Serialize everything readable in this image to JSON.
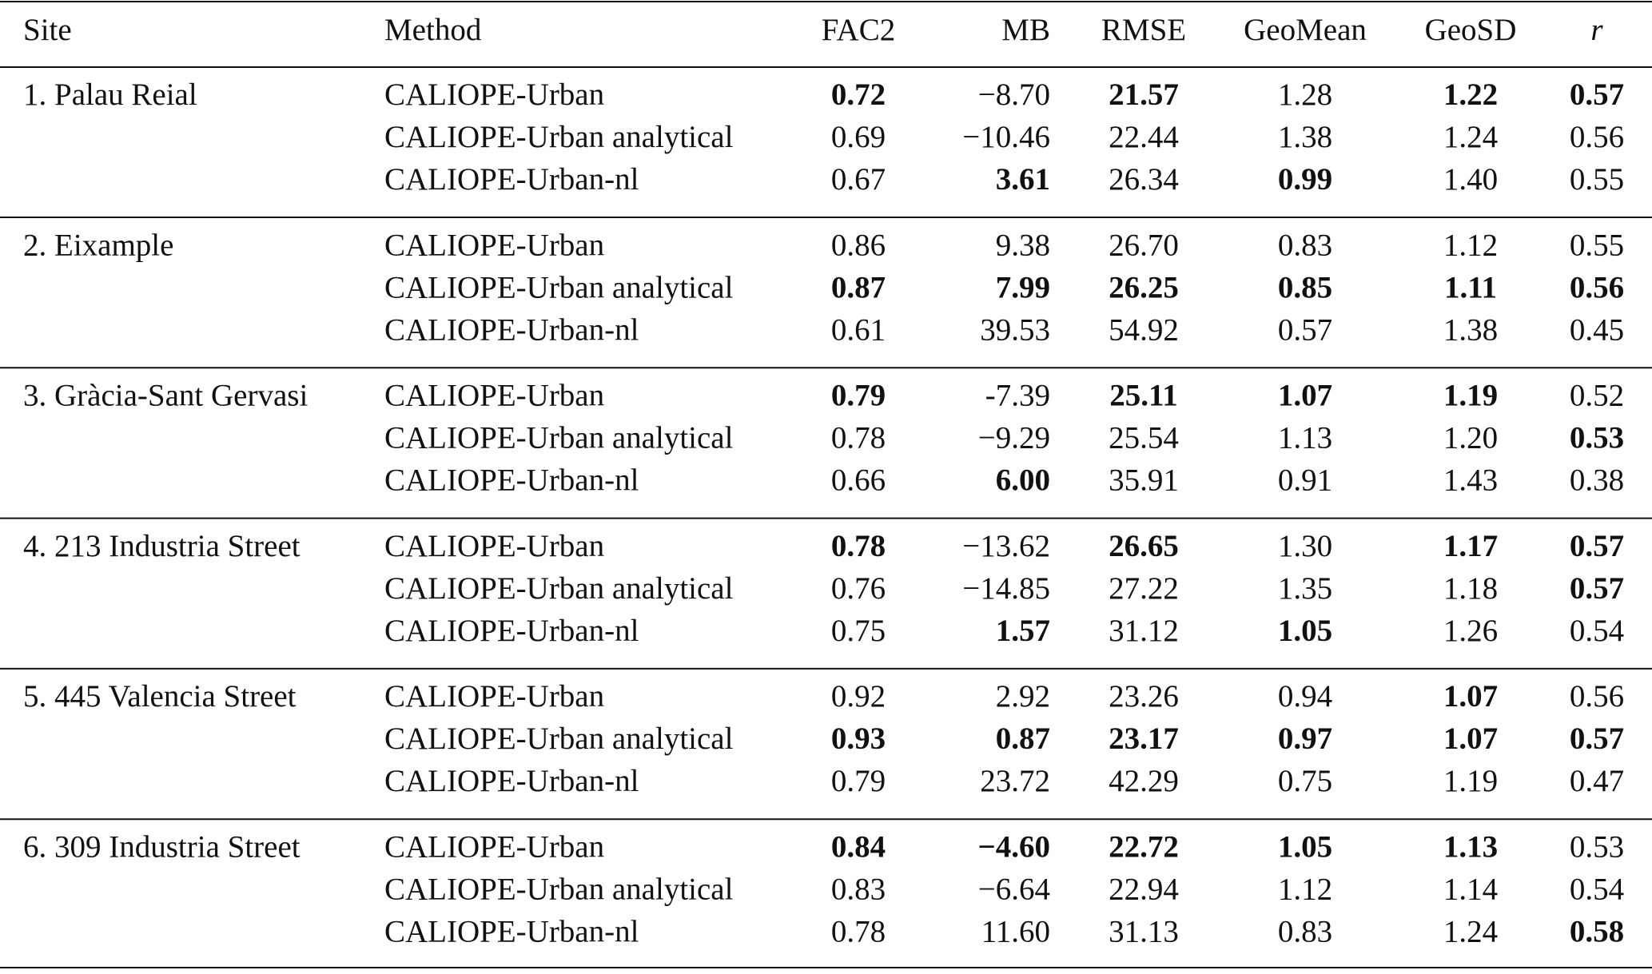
{
  "table": {
    "header": [
      "Site",
      "Method",
      "FAC2",
      "MB",
      "RMSE",
      "GeoMean",
      "GeoSD",
      "r"
    ],
    "groups": [
      {
        "site": "1. Palau Reial",
        "rows": [
          {
            "method": "CALIOPE-Urban",
            "values": [
              "0.72",
              "−8.70",
              "21.57",
              "1.28",
              "1.22",
              "0.57"
            ],
            "bold": [
              true,
              false,
              true,
              false,
              true,
              true
            ]
          },
          {
            "method": "CALIOPE-Urban analytical",
            "values": [
              "0.69",
              "−10.46",
              "22.44",
              "1.38",
              "1.24",
              "0.56"
            ],
            "bold": [
              false,
              false,
              false,
              false,
              false,
              false
            ]
          },
          {
            "method": "CALIOPE-Urban-nl",
            "values": [
              "0.67",
              "3.61",
              "26.34",
              "0.99",
              "1.40",
              "0.55"
            ],
            "bold": [
              false,
              true,
              false,
              true,
              false,
              false
            ]
          }
        ]
      },
      {
        "site": "2. Eixample",
        "rows": [
          {
            "method": "CALIOPE-Urban",
            "values": [
              "0.86",
              "9.38",
              "26.70",
              "0.83",
              "1.12",
              "0.55"
            ],
            "bold": [
              false,
              false,
              false,
              false,
              false,
              false
            ]
          },
          {
            "method": "CALIOPE-Urban analytical",
            "values": [
              "0.87",
              "7.99",
              "26.25",
              "0.85",
              "1.11",
              "0.56"
            ],
            "bold": [
              true,
              true,
              true,
              true,
              true,
              true
            ]
          },
          {
            "method": "CALIOPE-Urban-nl",
            "values": [
              "0.61",
              "39.53",
              "54.92",
              "0.57",
              "1.38",
              "0.45"
            ],
            "bold": [
              false,
              false,
              false,
              false,
              false,
              false
            ]
          }
        ]
      },
      {
        "site": "3. Gràcia-Sant Gervasi",
        "rows": [
          {
            "method": "CALIOPE-Urban",
            "values": [
              "0.79",
              "-7.39",
              "25.11",
              "1.07",
              "1.19",
              "0.52"
            ],
            "bold": [
              true,
              false,
              true,
              true,
              true,
              false
            ]
          },
          {
            "method": "CALIOPE-Urban analytical",
            "values": [
              "0.78",
              "−9.29",
              "25.54",
              "1.13",
              "1.20",
              "0.53"
            ],
            "bold": [
              false,
              false,
              false,
              false,
              false,
              true
            ]
          },
          {
            "method": "CALIOPE-Urban-nl",
            "values": [
              "0.66",
              "6.00",
              "35.91",
              "0.91",
              "1.43",
              "0.38"
            ],
            "bold": [
              false,
              true,
              false,
              false,
              false,
              false
            ]
          }
        ]
      },
      {
        "site": "4. 213 Industria Street",
        "rows": [
          {
            "method": "CALIOPE-Urban",
            "values": [
              "0.78",
              "−13.62",
              "26.65",
              "1.30",
              "1.17",
              "0.57"
            ],
            "bold": [
              true,
              false,
              true,
              false,
              true,
              true
            ]
          },
          {
            "method": "CALIOPE-Urban analytical",
            "values": [
              "0.76",
              "−14.85",
              "27.22",
              "1.35",
              "1.18",
              "0.57"
            ],
            "bold": [
              false,
              false,
              false,
              false,
              false,
              true
            ]
          },
          {
            "method": "CALIOPE-Urban-nl",
            "values": [
              "0.75",
              "1.57",
              "31.12",
              "1.05",
              "1.26",
              "0.54"
            ],
            "bold": [
              false,
              true,
              false,
              true,
              false,
              false
            ]
          }
        ]
      },
      {
        "site": "5. 445 Valencia Street",
        "rows": [
          {
            "method": "CALIOPE-Urban",
            "values": [
              "0.92",
              "2.92",
              "23.26",
              "0.94",
              "1.07",
              "0.56"
            ],
            "bold": [
              false,
              false,
              false,
              false,
              true,
              false
            ]
          },
          {
            "method": "CALIOPE-Urban analytical",
            "values": [
              "0.93",
              "0.87",
              "23.17",
              "0.97",
              "1.07",
              "0.57"
            ],
            "bold": [
              true,
              true,
              true,
              true,
              true,
              true
            ]
          },
          {
            "method": "CALIOPE-Urban-nl",
            "values": [
              "0.79",
              "23.72",
              "42.29",
              "0.75",
              "1.19",
              "0.47"
            ],
            "bold": [
              false,
              false,
              false,
              false,
              false,
              false
            ]
          }
        ]
      },
      {
        "site": "6. 309 Industria Street",
        "rows": [
          {
            "method": "CALIOPE-Urban",
            "values": [
              "0.84",
              "−4.60",
              "22.72",
              "1.05",
              "1.13",
              "0.53"
            ],
            "bold": [
              true,
              true,
              true,
              true,
              true,
              false
            ]
          },
          {
            "method": "CALIOPE-Urban analytical",
            "values": [
              "0.83",
              "−6.64",
              "22.94",
              "1.12",
              "1.14",
              "0.54"
            ],
            "bold": [
              false,
              false,
              false,
              false,
              false,
              false
            ]
          },
          {
            "method": "CALIOPE-Urban-nl",
            "values": [
              "0.78",
              "11.60",
              "31.13",
              "0.83",
              "1.24",
              "0.58"
            ],
            "bold": [
              false,
              false,
              false,
              false,
              false,
              true
            ]
          }
        ]
      }
    ]
  }
}
